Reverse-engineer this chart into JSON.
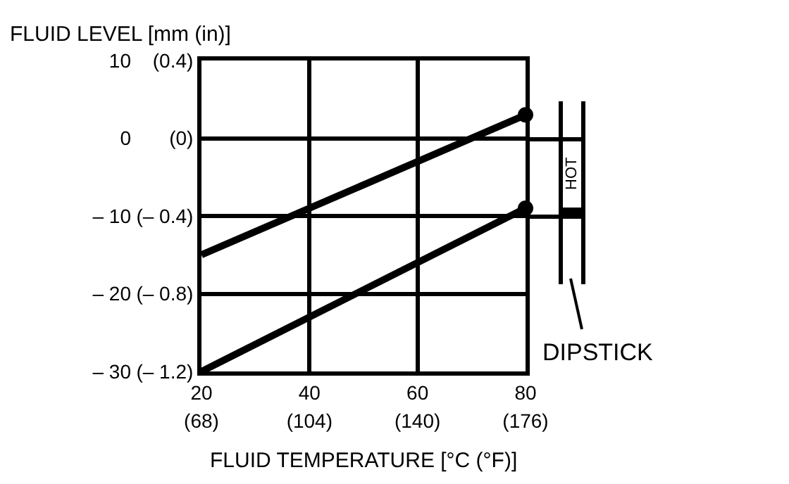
{
  "chart_data": {
    "type": "line",
    "xlabel": "FLUID TEMPERATURE [°C (°F)]",
    "ylabel": "FLUID LEVEL [mm (in)]",
    "x": [
      20,
      80
    ],
    "series": [
      {
        "color": "#000000",
        "values": [
          -15,
          3
        ]
      },
      {
        "color": "#000000",
        "values": [
          -30,
          -9
        ]
      },
      {
        "type": "scatter",
        "color": "#000000",
        "marker": "circle",
        "x": [
          80,
          80
        ],
        "values": [
          3,
          -9
        ]
      }
    ],
    "xlim": [
      20,
      80
    ],
    "xticks": [
      20,
      40,
      60,
      80
    ],
    "x2lim": [
      68,
      176
    ],
    "x2ticks": [
      {
        "value": 68,
        "label": "(68)"
      },
      {
        "value": 104,
        "label": "(104)"
      },
      {
        "value": 140,
        "label": "(140)"
      },
      {
        "value": 176,
        "label": "(176)"
      }
    ],
    "ylim": [
      -30,
      10
    ],
    "yticks": [
      {
        "value": -30,
        "label": "– 30"
      },
      {
        "value": -20,
        "label": "– 20"
      },
      {
        "value": -10,
        "label": "– 10"
      },
      0,
      10
    ],
    "y2lim": [
      -1.2,
      0.4
    ],
    "y2ticks": [
      {
        "value": -1.2,
        "label": "(– 1.2)"
      },
      {
        "value": -0.8,
        "label": "(– 0.8)"
      },
      {
        "value": -0.4,
        "label": "(– 0.4)"
      },
      {
        "value": 0,
        "label": "(0)"
      },
      {
        "value": 0.4,
        "label": "(0.4)"
      }
    ],
    "grid": true,
    "marker": "none",
    "annotations": [
      "HOT",
      "DIPSTICK"
    ]
  }
}
